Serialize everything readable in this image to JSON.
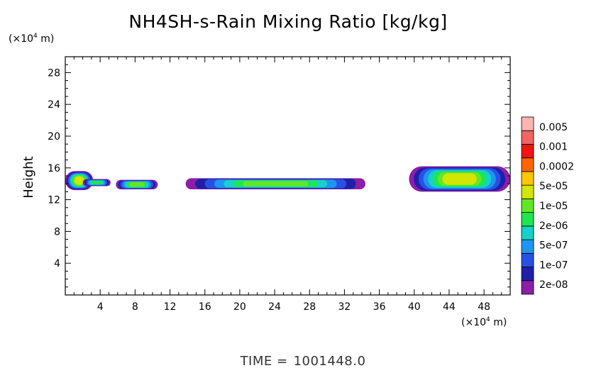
{
  "chart_data": {
    "type": "heatmap",
    "title": "NH4SH-s-Rain Mixing Ratio [kg/kg]",
    "ylabel": "Height",
    "xlabel": "",
    "x_unit_prefix": "(×10",
    "x_unit_exp": "4",
    "x_unit_suffix": " m)",
    "y_unit_prefix": "(×10",
    "y_unit_exp": "4",
    "y_unit_suffix": " m)",
    "xlim": [
      0,
      51
    ],
    "ylim": [
      0,
      30
    ],
    "xticks": [
      "4",
      "8",
      "12",
      "16",
      "20",
      "24",
      "28",
      "32",
      "36",
      "40",
      "44",
      "48"
    ],
    "yticks": [
      "4",
      "8",
      "12",
      "16",
      "20",
      "24",
      "28"
    ],
    "grid": false,
    "legend": "right",
    "colorbar": {
      "colors": [
        "#8b1fa8",
        "#1f1fa8",
        "#2850e6",
        "#1e96f0",
        "#14d2c8",
        "#1ee650",
        "#64e628",
        "#d2e600",
        "#ffc800",
        "#ff6400",
        "#f01414",
        "#f06464",
        "#fab4b4"
      ],
      "labels": [
        "2e-08",
        "1e-07",
        "5e-07",
        "2e-06",
        "1e-05",
        "5e-05",
        "0.0002",
        "0.001",
        "0.005"
      ]
    },
    "regions": [
      {
        "x": [
          0,
          3.2
        ],
        "y": [
          13.2,
          15.6
        ],
        "level": "0.0002"
      },
      {
        "x": [
          2.0,
          5.2
        ],
        "y": [
          13.7,
          14.6
        ],
        "level": "1e-05"
      },
      {
        "x": [
          5.8,
          10.6
        ],
        "y": [
          13.3,
          14.5
        ],
        "level": "5e-05"
      },
      {
        "x": [
          13.8,
          34.4
        ],
        "y": [
          13.3,
          14.7
        ],
        "level": "5e-05"
      },
      {
        "x": [
          39.4,
          51
        ],
        "y": [
          13.0,
          16.2
        ],
        "level": "0.0002"
      }
    ],
    "time_label": "TIME =",
    "time_value": "1001448.0"
  }
}
